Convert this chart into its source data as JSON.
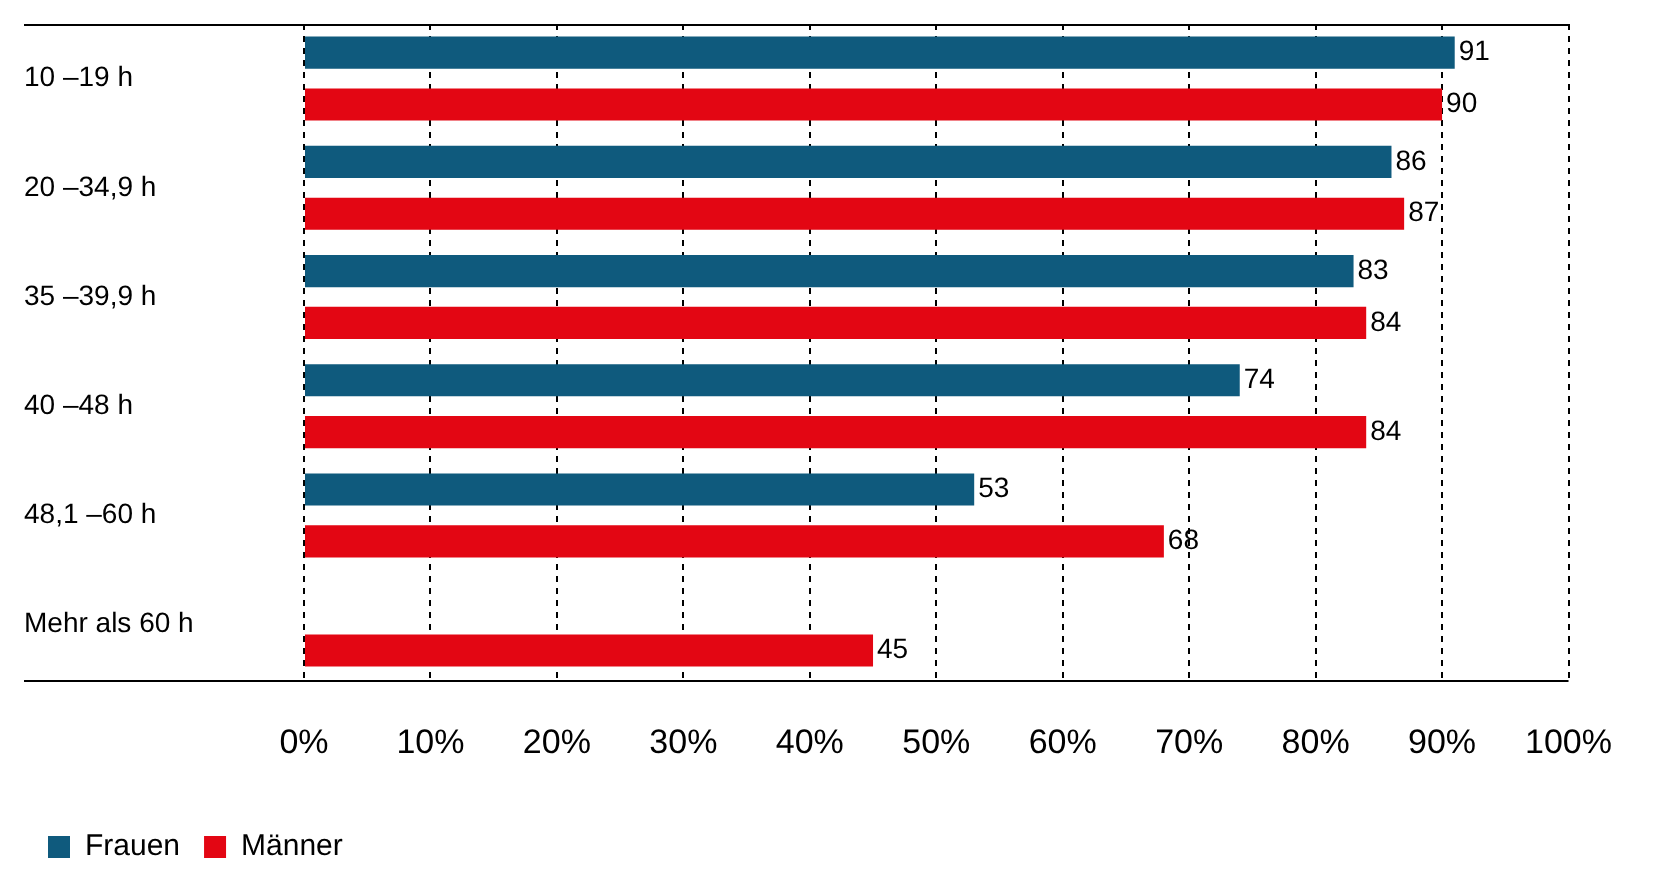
{
  "chart_data": {
    "type": "bar",
    "orientation": "horizontal",
    "categories": [
      "10 –19 h",
      "20 –34,9 h",
      "35 –39,9 h",
      "40 –48 h",
      "48,1 –60 h",
      "Mehr als 60 h"
    ],
    "series": [
      {
        "name": "Frauen",
        "color": "#0f5a7d",
        "values": [
          91,
          86,
          83,
          74,
          53,
          null
        ]
      },
      {
        "name": "Männer",
        "color": "#e30613",
        "values": [
          90,
          87,
          84,
          84,
          68,
          45
        ]
      }
    ],
    "xlim": [
      0,
      100
    ],
    "xticks": [
      {
        "value": 0,
        "label": "0%"
      },
      {
        "value": 10,
        "label": "10%"
      },
      {
        "value": 20,
        "label": "20%"
      },
      {
        "value": 30,
        "label": "30%"
      },
      {
        "value": 40,
        "label": "40%"
      },
      {
        "value": 50,
        "label": "50%"
      },
      {
        "value": 60,
        "label": "60%"
      },
      {
        "value": 70,
        "label": "70%"
      },
      {
        "value": 80,
        "label": "80%"
      },
      {
        "value": 90,
        "label": "90%"
      },
      {
        "value": 100,
        "label": "100%"
      }
    ],
    "grid": "x",
    "legend": "bottom left",
    "data_labels": true
  }
}
